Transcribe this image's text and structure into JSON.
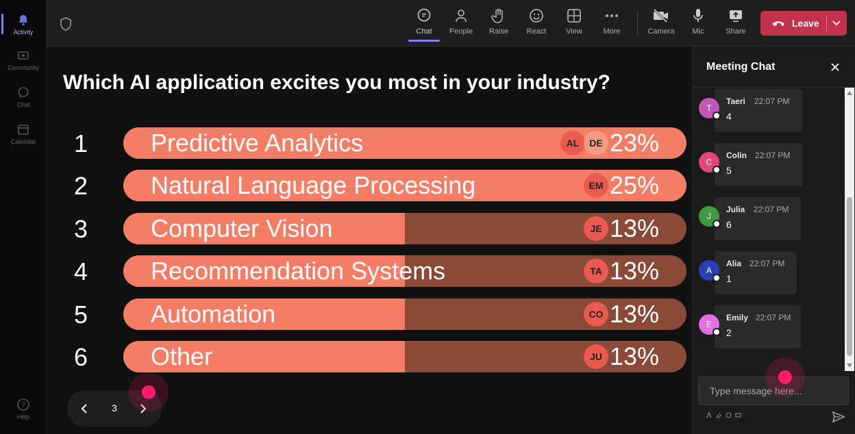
{
  "rail": {
    "items": [
      {
        "label": "Activity",
        "icon": "bell-icon"
      },
      {
        "label": "Community",
        "icon": "community-icon"
      },
      {
        "label": "Chat",
        "icon": "chat-icon"
      },
      {
        "label": "Calendar",
        "icon": "calendar-icon"
      }
    ],
    "help": {
      "label": "Help",
      "icon": "help-icon"
    }
  },
  "toolbar": {
    "chat": "Chat",
    "people": "People",
    "raise": "Raise",
    "react": "React",
    "view": "View",
    "more": "More",
    "camera": "Camera",
    "mic": "Mic",
    "share": "Share",
    "leave": "Leave"
  },
  "poll": {
    "question": "Which AI application excites you most in your industry?",
    "options": [
      {
        "num": "1",
        "label": "Predictive Analytics",
        "pct": "23%",
        "fill": 1.0,
        "voters": [
          "AL",
          "DE"
        ]
      },
      {
        "num": "2",
        "label": "Natural Language Processing",
        "pct": "25%",
        "fill": 1.0,
        "voters": [
          "EM"
        ]
      },
      {
        "num": "3",
        "label": "Computer Vision",
        "pct": "13%",
        "fill": 0.5,
        "voters": [
          "JE"
        ]
      },
      {
        "num": "4",
        "label": "Recommendation Systems",
        "pct": "13%",
        "fill": 0.5,
        "voters": [
          "TA"
        ]
      },
      {
        "num": "5",
        "label": "Automation",
        "pct": "13%",
        "fill": 0.5,
        "voters": [
          "CO"
        ]
      },
      {
        "num": "6",
        "label": "Other",
        "pct": "13%",
        "fill": 0.5,
        "voters": [
          "JU"
        ]
      }
    ],
    "page": "3"
  },
  "chat": {
    "title": "Meeting Chat",
    "messages": [
      {
        "initial": "T",
        "name": "Taeri",
        "time": "22:07 PM",
        "text": "4",
        "color": "#c158b8"
      },
      {
        "initial": "C",
        "name": "Colin",
        "time": "22:07 PM",
        "text": "5",
        "color": "#e0457b"
      },
      {
        "initial": "J",
        "name": "Julia",
        "time": "22:07 PM",
        "text": "6",
        "color": "#3f9a3f"
      },
      {
        "initial": "A",
        "name": "Alia",
        "time": "22:07 PM",
        "text": "1",
        "color": "#2c3fb5"
      },
      {
        "initial": "E",
        "name": "Emily",
        "time": "22:07 PM",
        "text": "2",
        "color": "#e36fe3"
      }
    ],
    "input_placeholder": "Type message here..."
  },
  "colors": {
    "bar_fill": "#f47e65",
    "bar_track": "#8a4a38",
    "leave": "#c4314b",
    "accent": "#7f85f5"
  }
}
